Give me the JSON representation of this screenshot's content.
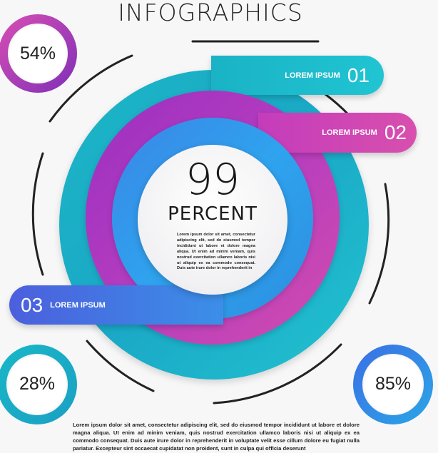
{
  "title": "INFOGRAPHICS",
  "center": {
    "value": "99",
    "label": "PERCENT",
    "text": "Lorem ipsum dolor sit amet, consectetur adipiscing elit, sed do eiusmod tempor incididunt ut labore et dolore magna aliqua. Ut enim ad minim veniam, quis nostrud exercitation ullamco laboris nisi ut aliquip ex ea commodo consequat. Duis aute irure dolor in reprehenderit in"
  },
  "tabs": [
    {
      "label": "LOREM IPSUM",
      "number": "01"
    },
    {
      "label": "LOREM IPSUM",
      "number": "02"
    },
    {
      "label": "LOREM IPSUM",
      "number": "03"
    }
  ],
  "percent_circles": [
    {
      "value": "54%"
    },
    {
      "value": "28%"
    },
    {
      "value": "85%"
    }
  ],
  "footer_text": "Lorem ipsum dolor sit amet, consectetur adipiscing elit, sed do eiusmod tempor incididunt ut labore et dolore magna aliqua. Ut enim ad minim veniam, quis nostrud exercitation ullamco laboris nisi ut aliquip ex ea commodo consequat. Duis aute irure dolor in reprehenderit in voluptate velit esse cillum dolore eu fugiat nulla pariatur. Excepteur sint occaecat cupidatat non proident, sunt in culpa qui officia deserunt",
  "colors": {
    "teal": "#1cb6c6",
    "purple": "#b53dbf",
    "magenta": "#d24cae",
    "blue": "#2fa3ee",
    "indigo": "#4c5fdd"
  }
}
